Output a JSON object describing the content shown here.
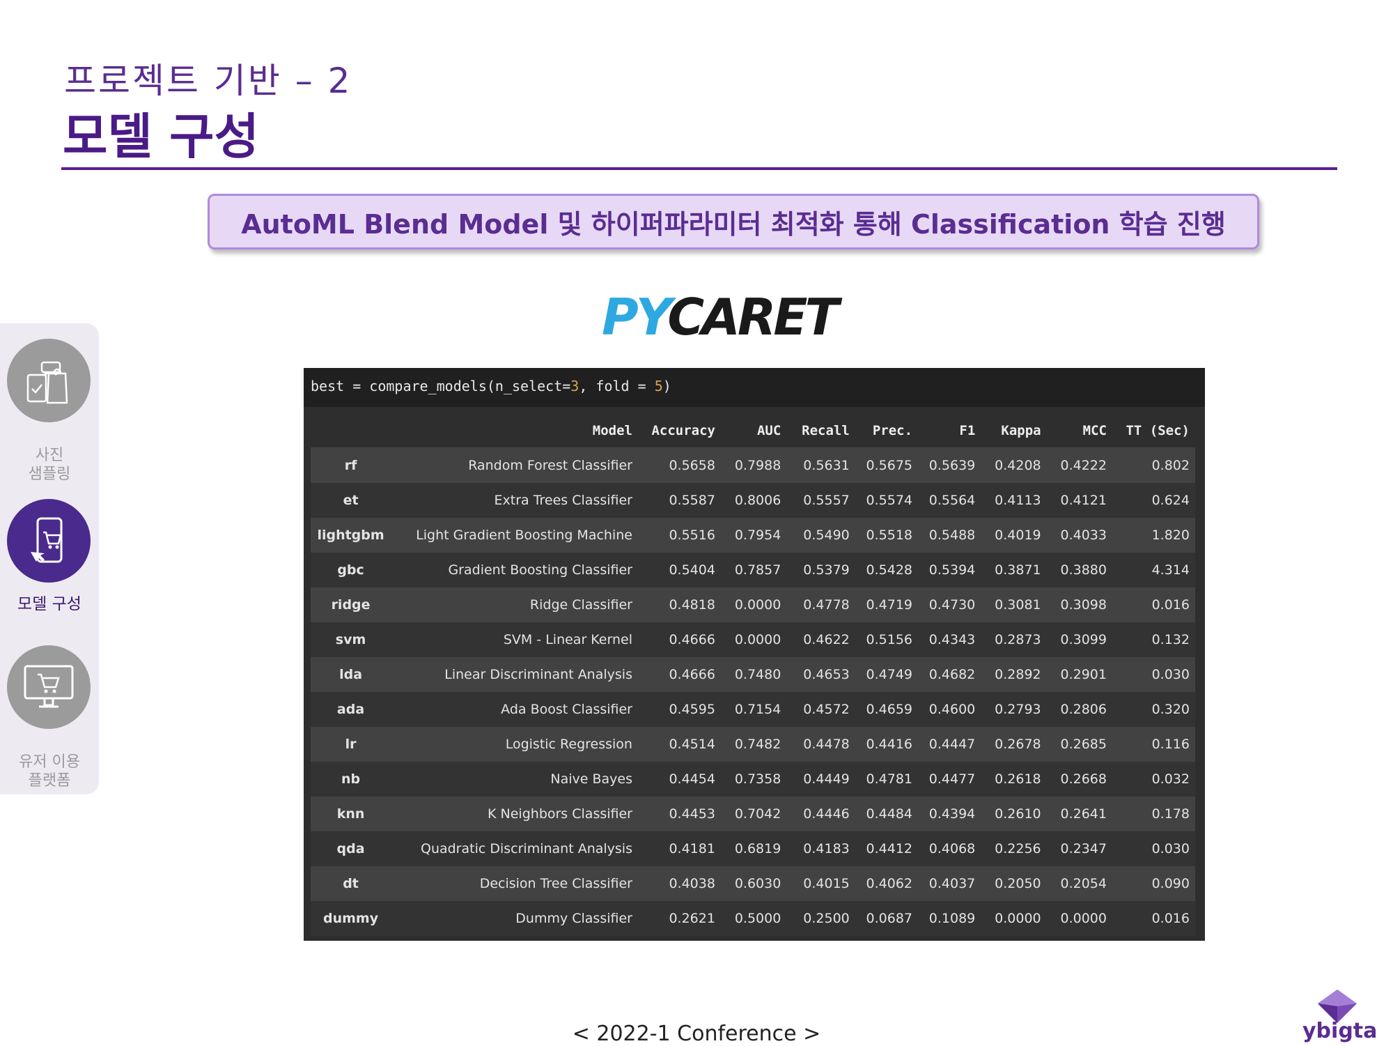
{
  "header": {
    "subtitle": "프로젝트 기반 – 2",
    "title": "모델 구성"
  },
  "banner": {
    "text": "AutoML Blend Model 및 하이퍼파라미터 최적화 통해 Classification 학습 진행"
  },
  "sidenav": {
    "items": [
      {
        "line1": "사진",
        "line2": "샘플링",
        "icon": "shopping-photo-icon",
        "active": false
      },
      {
        "line1": "모델 구성",
        "line2": "",
        "icon": "mobile-cart-icon",
        "active": true
      },
      {
        "line1": "유저 이용",
        "line2": "플랫폼",
        "icon": "monitor-cart-icon",
        "active": false
      }
    ]
  },
  "logo": {
    "text": "PYCARET",
    "colors": {
      "py": "#2ea8e0",
      "caret": "#1a1a1a"
    }
  },
  "code": {
    "prefix": "best = compare_models(n_select=",
    "n_select": "3",
    "middle": ", fold = ",
    "fold": "5",
    "suffix": ")"
  },
  "table": {
    "columns": [
      "",
      "Model",
      "Accuracy",
      "AUC",
      "Recall",
      "Prec.",
      "F1",
      "Kappa",
      "MCC",
      "TT (Sec)"
    ],
    "rows": [
      [
        "rf",
        "Random Forest Classifier",
        "0.5658",
        "0.7988",
        "0.5631",
        "0.5675",
        "0.5639",
        "0.4208",
        "0.4222",
        "0.802"
      ],
      [
        "et",
        "Extra Trees Classifier",
        "0.5587",
        "0.8006",
        "0.5557",
        "0.5574",
        "0.5564",
        "0.4113",
        "0.4121",
        "0.624"
      ],
      [
        "lightgbm",
        "Light Gradient Boosting Machine",
        "0.5516",
        "0.7954",
        "0.5490",
        "0.5518",
        "0.5488",
        "0.4019",
        "0.4033",
        "1.820"
      ],
      [
        "gbc",
        "Gradient Boosting Classifier",
        "0.5404",
        "0.7857",
        "0.5379",
        "0.5428",
        "0.5394",
        "0.3871",
        "0.3880",
        "4.314"
      ],
      [
        "ridge",
        "Ridge Classifier",
        "0.4818",
        "0.0000",
        "0.4778",
        "0.4719",
        "0.4730",
        "0.3081",
        "0.3098",
        "0.016"
      ],
      [
        "svm",
        "SVM - Linear Kernel",
        "0.4666",
        "0.0000",
        "0.4622",
        "0.5156",
        "0.4343",
        "0.2873",
        "0.3099",
        "0.132"
      ],
      [
        "lda",
        "Linear Discriminant Analysis",
        "0.4666",
        "0.7480",
        "0.4653",
        "0.4749",
        "0.4682",
        "0.2892",
        "0.2901",
        "0.030"
      ],
      [
        "ada",
        "Ada Boost Classifier",
        "0.4595",
        "0.7154",
        "0.4572",
        "0.4659",
        "0.4600",
        "0.2793",
        "0.2806",
        "0.320"
      ],
      [
        "lr",
        "Logistic Regression",
        "0.4514",
        "0.7482",
        "0.4478",
        "0.4416",
        "0.4447",
        "0.2678",
        "0.2685",
        "0.116"
      ],
      [
        "nb",
        "Naive Bayes",
        "0.4454",
        "0.7358",
        "0.4449",
        "0.4781",
        "0.4477",
        "0.2618",
        "0.2668",
        "0.032"
      ],
      [
        "knn",
        "K Neighbors Classifier",
        "0.4453",
        "0.7042",
        "0.4446",
        "0.4484",
        "0.4394",
        "0.2610",
        "0.2641",
        "0.178"
      ],
      [
        "qda",
        "Quadratic Discriminant Analysis",
        "0.4181",
        "0.6819",
        "0.4183",
        "0.4412",
        "0.4068",
        "0.2256",
        "0.2347",
        "0.030"
      ],
      [
        "dt",
        "Decision Tree Classifier",
        "0.4038",
        "0.6030",
        "0.4015",
        "0.4062",
        "0.4037",
        "0.2050",
        "0.2054",
        "0.090"
      ],
      [
        "dummy",
        "Dummy Classifier",
        "0.2621",
        "0.5000",
        "0.2500",
        "0.0687",
        "0.1089",
        "0.0000",
        "0.0000",
        "0.016"
      ]
    ]
  },
  "footer": {
    "text": "<  2022-1 Conference  >"
  },
  "brand": {
    "text": "ybigta"
  }
}
